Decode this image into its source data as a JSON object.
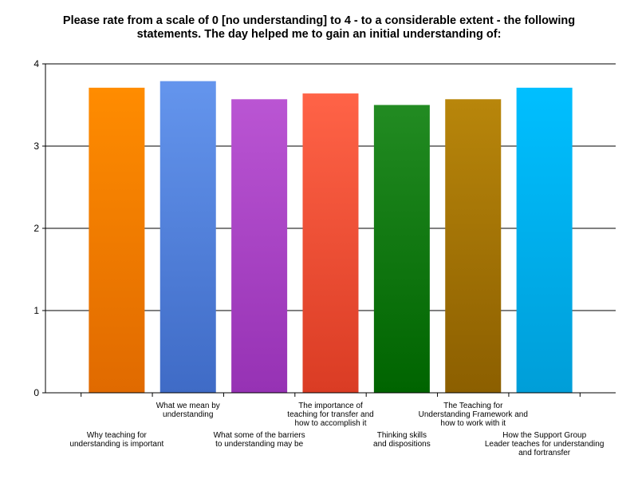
{
  "chart_data": {
    "type": "bar",
    "title": "Please rate from a scale of 0 [no understanding] to 4 - to a considerable extent - the following statements.  The day helped me to gain an initial understanding of:",
    "title_lines": [
      "Please rate from a scale of 0 [no understanding] to 4 - to a considerable extent - the following",
      "statements.  The day helped me to gain an initial understanding of:"
    ],
    "categories": [
      "Why teaching for understanding is important",
      "What we mean by understanding",
      "What some of the barriers to understanding may be",
      "The importance of teaching for transfer and how to accomplish it",
      "Thinking skills and dispositions",
      "The Teaching for Understanding Framework and how to work with it",
      "How the Support Group Leader teaches for understanding and fortransfer"
    ],
    "category_label_lines": [
      [
        "Why teaching for",
        "understanding is important"
      ],
      [
        "What we mean by",
        "understanding"
      ],
      [
        "What some of the barriers",
        "to understanding may be"
      ],
      [
        "The importance of",
        "teaching for transfer and",
        "how to accomplish it"
      ],
      [
        "Thinking skills",
        "and dispositions"
      ],
      [
        "The Teaching for",
        "Understanding Framework and",
        "how to work with it"
      ],
      [
        "How the Support Group",
        "Leader teaches for understanding",
        "and fortransfer"
      ]
    ],
    "values": [
      3.71,
      3.79,
      3.57,
      3.64,
      3.5,
      3.57,
      3.71
    ],
    "ylim": [
      0,
      4
    ],
    "yticks": [
      "0",
      "1",
      "2",
      "3",
      "4"
    ],
    "grid": true,
    "xlabel": "",
    "ylabel": "",
    "bar_colors": [
      [
        "#ff8c00",
        "#e06a00"
      ],
      [
        "#6495ed",
        "#3f6bc6"
      ],
      [
        "#ba55d3",
        "#9632b4"
      ],
      [
        "#ff6347",
        "#da3c24"
      ],
      [
        "#228b22",
        "#006400"
      ],
      [
        "#b8860b",
        "#8c5f00"
      ],
      [
        "#00bfff",
        "#009ed8"
      ]
    ]
  }
}
